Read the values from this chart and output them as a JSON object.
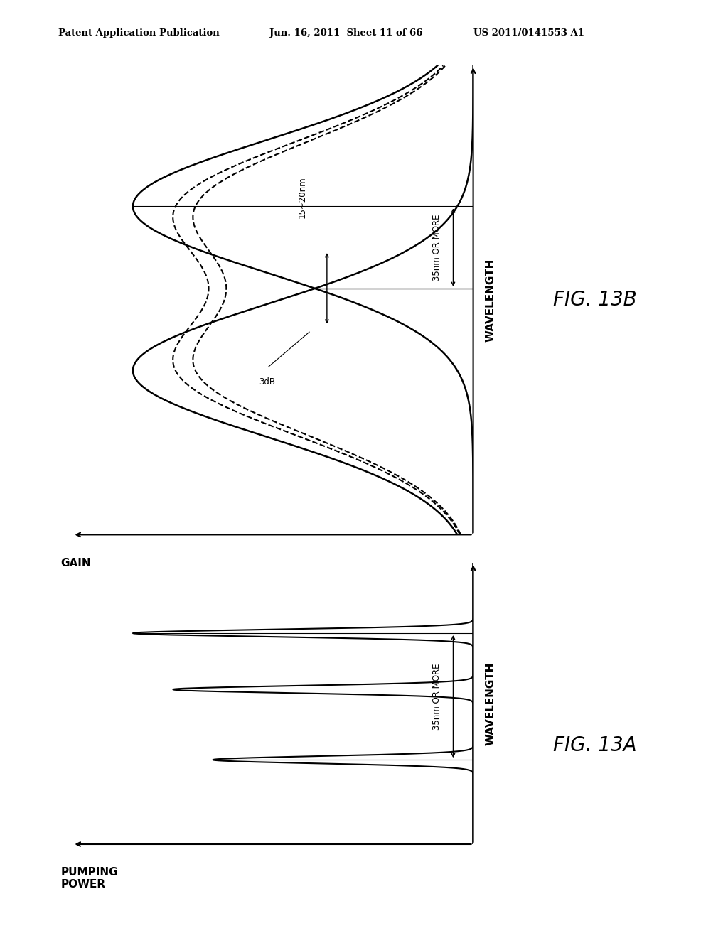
{
  "header_left": "Patent Application Publication",
  "header_mid": "Jun. 16, 2011  Sheet 11 of 66",
  "header_right": "US 2011/0141553 A1",
  "fig13a_label": "FIG. 13A",
  "fig13b_label": "FIG. 13B",
  "xlabel_a": "WAVELENGTH",
  "ylabel_a": "PUMPING\nPOWER",
  "xlabel_b": "WAVELENGTH",
  "ylabel_b": "GAIN",
  "annotation_35nm_a": "35nm OR MORE",
  "annotation_35nm_b": "35nm OR MORE",
  "annotation_15_20": "15~20nm",
  "annotation_3db": "3dB",
  "bg_color": "#ffffff",
  "line_color": "#000000"
}
